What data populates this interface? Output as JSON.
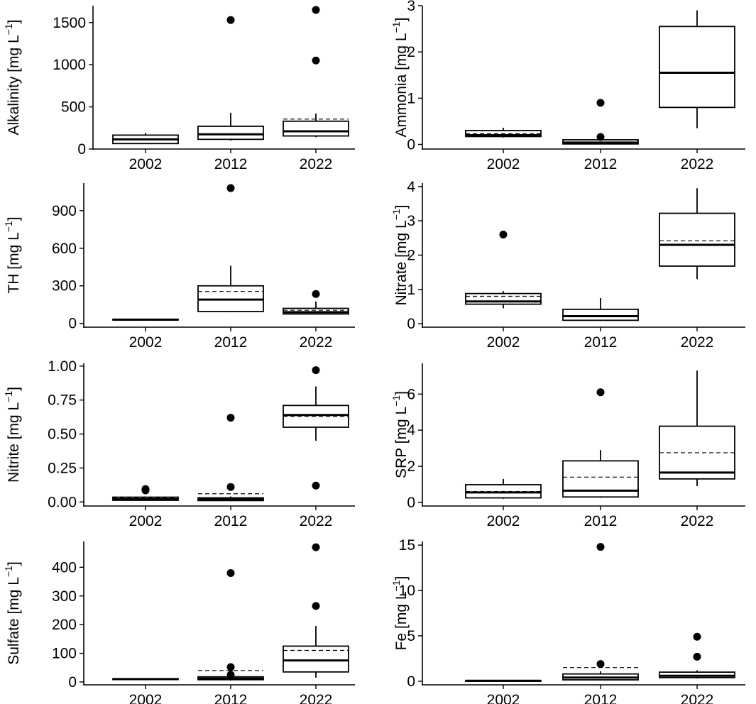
{
  "chart_data": [
    {
      "type": "box",
      "panel": "top-left",
      "ylabel": "Alkalinity [mg L",
      "unit_exponent": "−1",
      "categories": [
        "2002",
        "2012",
        "2022"
      ],
      "ylim": [
        0,
        1700
      ],
      "yticks": [
        0,
        500,
        1000,
        1500
      ],
      "ytick_labels": [
        "0",
        "500",
        "1000",
        "1500"
      ],
      "boxes": [
        {
          "year": "2002",
          "whisker_low": 60,
          "q1": 65,
          "median": 115,
          "q3": 165,
          "whisker_high": 190,
          "mean": 120,
          "outliers": []
        },
        {
          "year": "2012",
          "whisker_low": 100,
          "q1": 115,
          "median": 175,
          "q3": 270,
          "whisker_high": 430,
          "mean": 270,
          "outliers": [
            1530
          ]
        },
        {
          "year": "2022",
          "whisker_low": 140,
          "q1": 155,
          "median": 210,
          "q3": 330,
          "whisker_high": 420,
          "mean": 355,
          "outliers": [
            1050,
            1650
          ]
        }
      ]
    },
    {
      "type": "box",
      "panel": "top-right",
      "ylabel": "Ammonia [mg L",
      "unit_exponent": "−1",
      "categories": [
        "2002",
        "2012",
        "2022"
      ],
      "ylim": [
        -0.1,
        3.0
      ],
      "yticks": [
        0,
        1,
        2,
        3
      ],
      "ytick_labels": [
        "0",
        "1",
        "2",
        "3"
      ],
      "boxes": [
        {
          "year": "2002",
          "whisker_low": 0.15,
          "q1": 0.17,
          "median": 0.2,
          "q3": 0.3,
          "whisker_high": 0.36,
          "mean": 0.23,
          "outliers": []
        },
        {
          "year": "2012",
          "whisker_low": 0.0,
          "q1": 0.01,
          "median": 0.04,
          "q3": 0.1,
          "whisker_high": 0.12,
          "mean": 0.1,
          "outliers": [
            0.16,
            0.9
          ]
        },
        {
          "year": "2022",
          "whisker_low": 0.35,
          "q1": 0.8,
          "median": 1.55,
          "q3": 2.55,
          "whisker_high": 2.9,
          "mean": 1.55,
          "outliers": []
        }
      ]
    },
    {
      "type": "box",
      "panel": "row2-left",
      "ylabel": "TH [mg L",
      "unit_exponent": "−1",
      "categories": [
        "2002",
        "2012",
        "2022"
      ],
      "ylim": [
        -30,
        1120
      ],
      "yticks": [
        0,
        300,
        600,
        900
      ],
      "ytick_labels": [
        "0",
        "300",
        "600",
        "900"
      ],
      "boxes": [
        {
          "year": "2002",
          "whisker_low": 25,
          "q1": 27,
          "median": 30,
          "q3": 33,
          "whisker_high": 35,
          "mean": 30,
          "outliers": []
        },
        {
          "year": "2012",
          "whisker_low": 90,
          "q1": 95,
          "median": 190,
          "q3": 300,
          "whisker_high": 460,
          "mean": 255,
          "outliers": [
            1080
          ]
        },
        {
          "year": "2022",
          "whisker_low": 70,
          "q1": 75,
          "median": 90,
          "q3": 120,
          "whisker_high": 175,
          "mean": 105,
          "outliers": [
            235
          ]
        }
      ]
    },
    {
      "type": "box",
      "panel": "row2-right",
      "ylabel": "Nitrate [mg L",
      "unit_exponent": "−1",
      "categories": [
        "2002",
        "2012",
        "2022"
      ],
      "ylim": [
        -0.1,
        4.1
      ],
      "yticks": [
        0,
        1,
        2,
        3,
        4
      ],
      "ytick_labels": [
        "0",
        "1",
        "2",
        "3",
        "4"
      ],
      "boxes": [
        {
          "year": "2002",
          "whisker_low": 0.45,
          "q1": 0.57,
          "median": 0.65,
          "q3": 0.88,
          "whisker_high": 0.95,
          "mean": 0.8,
          "outliers": [
            2.6
          ]
        },
        {
          "year": "2012",
          "whisker_low": 0.08,
          "q1": 0.1,
          "median": 0.22,
          "q3": 0.42,
          "whisker_high": 0.75,
          "mean": 0.24,
          "outliers": []
        },
        {
          "year": "2022",
          "whisker_low": 1.3,
          "q1": 1.68,
          "median": 2.3,
          "q3": 3.22,
          "whisker_high": 3.95,
          "mean": 2.42,
          "outliers": []
        }
      ]
    },
    {
      "type": "box",
      "panel": "row3-left",
      "ylabel": "Nitrite [mg L",
      "unit_exponent": "−1",
      "categories": [
        "2002",
        "2012",
        "2022"
      ],
      "ylim": [
        -0.03,
        1.02
      ],
      "yticks": [
        0,
        0.25,
        0.5,
        0.75,
        1.0
      ],
      "ytick_labels": [
        "0.00",
        "0.25",
        "0.50",
        "0.75",
        "1.00"
      ],
      "boxes": [
        {
          "year": "2002",
          "whisker_low": 0.01,
          "q1": 0.012,
          "median": 0.02,
          "q3": 0.035,
          "whisker_high": 0.04,
          "mean": 0.03,
          "outliers": [
            0.085,
            0.095
          ]
        },
        {
          "year": "2012",
          "whisker_low": 0.005,
          "q1": 0.01,
          "median": 0.02,
          "q3": 0.03,
          "whisker_high": 0.04,
          "mean": 0.06,
          "outliers": [
            0.11,
            0.62
          ]
        },
        {
          "year": "2022",
          "whisker_low": 0.45,
          "q1": 0.55,
          "median": 0.64,
          "q3": 0.71,
          "whisker_high": 0.85,
          "mean": 0.63,
          "outliers": [
            0.12,
            0.97
          ]
        }
      ]
    },
    {
      "type": "box",
      "panel": "row3-right",
      "ylabel": "SRP [mg L",
      "unit_exponent": "−1",
      "categories": [
        "2002",
        "2012",
        "2022"
      ],
      "ylim": [
        -0.2,
        7.7
      ],
      "yticks": [
        0,
        2,
        4,
        6
      ],
      "ytick_labels": [
        "0",
        "2",
        "4",
        "6"
      ],
      "boxes": [
        {
          "year": "2002",
          "whisker_low": 0.2,
          "q1": 0.25,
          "median": 0.55,
          "q3": 0.98,
          "whisker_high": 1.3,
          "mean": 0.6,
          "outliers": []
        },
        {
          "year": "2012",
          "whisker_low": 0.25,
          "q1": 0.3,
          "median": 0.65,
          "q3": 2.3,
          "whisker_high": 2.9,
          "mean": 1.4,
          "outliers": [
            6.1
          ]
        },
        {
          "year": "2022",
          "whisker_low": 0.9,
          "q1": 1.3,
          "median": 1.65,
          "q3": 4.22,
          "whisker_high": 7.3,
          "mean": 2.75,
          "outliers": []
        }
      ]
    },
    {
      "type": "box",
      "panel": "bottom-left",
      "ylabel": "Sulfate [mg L",
      "unit_exponent": "−1",
      "categories": [
        "2002",
        "2012",
        "2022"
      ],
      "ylim": [
        -10,
        490
      ],
      "yticks": [
        0,
        100,
        200,
        300,
        400
      ],
      "ytick_labels": [
        "0",
        "100",
        "200",
        "300",
        "400"
      ],
      "boxes": [
        {
          "year": "2002",
          "whisker_low": 8,
          "q1": 9,
          "median": 10,
          "q3": 11,
          "whisker_high": 12,
          "mean": 10,
          "outliers": []
        },
        {
          "year": "2012",
          "whisker_low": 5,
          "q1": 8,
          "median": 12,
          "q3": 18,
          "whisker_high": 22,
          "mean": 40,
          "outliers": [
            25,
            52,
            380
          ]
        },
        {
          "year": "2022",
          "whisker_low": 15,
          "q1": 35,
          "median": 75,
          "q3": 125,
          "whisker_high": 195,
          "mean": 110,
          "outliers": [
            265,
            470
          ]
        }
      ]
    },
    {
      "type": "box",
      "panel": "bottom-right",
      "ylabel": "Fe [mg L",
      "unit_exponent": "−1",
      "categories": [
        "2002",
        "2012",
        "2022"
      ],
      "ylim": [
        -0.4,
        15.4
      ],
      "yticks": [
        0,
        5,
        10,
        15
      ],
      "ytick_labels": [
        "0",
        "5",
        "10",
        "15"
      ],
      "boxes": [
        {
          "year": "2002",
          "whisker_low": 0.02,
          "q1": 0.03,
          "median": 0.05,
          "q3": 0.07,
          "whisker_high": 0.08,
          "mean": 0.05,
          "outliers": []
        },
        {
          "year": "2012",
          "whisker_low": 0.1,
          "q1": 0.15,
          "median": 0.4,
          "q3": 0.8,
          "whisker_high": 1.1,
          "mean": 1.5,
          "outliers": [
            1.9,
            14.8
          ]
        },
        {
          "year": "2022",
          "whisker_low": 0.3,
          "q1": 0.4,
          "median": 0.6,
          "q3": 1.0,
          "whisker_high": 1.2,
          "mean": 1.0,
          "outliers": [
            2.7,
            4.9
          ]
        }
      ]
    }
  ]
}
